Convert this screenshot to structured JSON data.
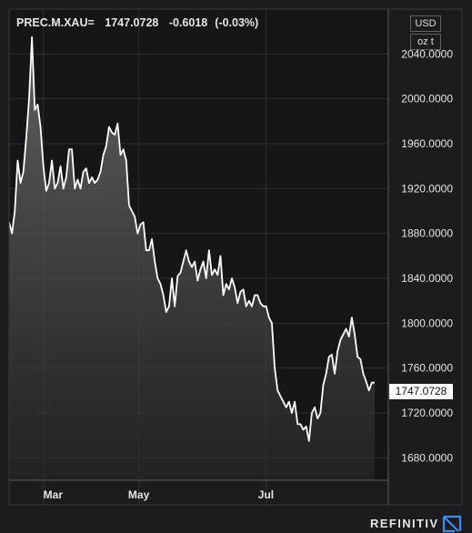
{
  "header": {
    "symbol": "PREC.M.XAU=",
    "last": "1747.0728",
    "change": "-0.6018",
    "change_pct": "(-0.03%)"
  },
  "units": {
    "currency": "USD",
    "unit": "oz t"
  },
  "last_price_label": "1747.0728",
  "brand": {
    "name": "REFINITIV"
  },
  "colors": {
    "background": "#1c1c1f",
    "line": "#ffffff",
    "grid": "#2f2f33"
  },
  "chart_data": {
    "type": "area",
    "x_tick_labels": [
      "Mar",
      "May",
      "Jul"
    ],
    "y_tick_labels": [
      "2040.0000",
      "2000.0000",
      "1960.0000",
      "1920.0000",
      "1880.0000",
      "1840.0000",
      "1800.0000",
      "1760.0000",
      "1720.0000",
      "1680.0000"
    ],
    "y_ticks": [
      2040,
      2000,
      1960,
      1920,
      1880,
      1840,
      1800,
      1760,
      1720,
      1680
    ],
    "ylim": [
      1660,
      2080
    ],
    "x_tick_positions": [
      14,
      53,
      105
    ],
    "xlim": [
      0,
      155
    ],
    "grid": true,
    "values": [
      1890,
      1880,
      1900,
      1945,
      1925,
      1935,
      1965,
      2000,
      2055,
      1990,
      1995,
      1975,
      1940,
      1918,
      1925,
      1945,
      1920,
      1925,
      1940,
      1920,
      1930,
      1955,
      1955,
      1920,
      1928,
      1920,
      1935,
      1938,
      1925,
      1930,
      1925,
      1928,
      1935,
      1950,
      1958,
      1975,
      1970,
      1968,
      1978,
      1950,
      1955,
      1945,
      1905,
      1900,
      1895,
      1880,
      1888,
      1890,
      1865,
      1865,
      1875,
      1855,
      1840,
      1835,
      1825,
      1810,
      1815,
      1840,
      1815,
      1842,
      1845,
      1855,
      1865,
      1855,
      1850,
      1855,
      1838,
      1848,
      1855,
      1840,
      1865,
      1843,
      1848,
      1843,
      1860,
      1825,
      1835,
      1830,
      1840,
      1832,
      1818,
      1828,
      1830,
      1815,
      1820,
      1815,
      1825,
      1825,
      1818,
      1815,
      1815,
      1805,
      1800,
      1760,
      1740,
      1735,
      1730,
      1725,
      1730,
      1720,
      1730,
      1710,
      1710,
      1705,
      1708,
      1695,
      1720,
      1725,
      1715,
      1720,
      1745,
      1755,
      1770,
      1772,
      1755,
      1775,
      1785,
      1790,
      1795,
      1788,
      1805,
      1790,
      1770,
      1768,
      1755,
      1748,
      1740,
      1747,
      1747
    ]
  }
}
